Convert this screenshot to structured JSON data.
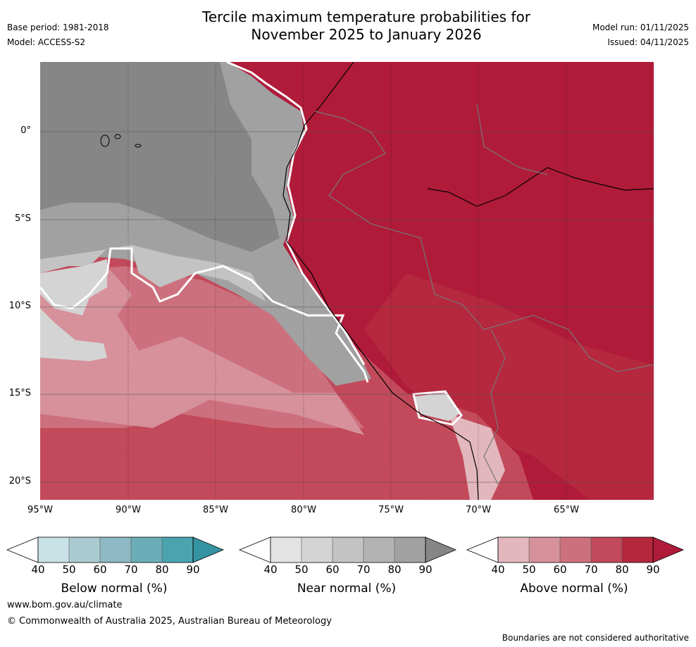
{
  "header": {
    "title_line1": "Tercile maximum temperature probabilities for",
    "title_line2": "November 2025 to January 2026",
    "base_period": "Base period: 1981-2018",
    "model": "Model: ACCESS-S2",
    "model_run": "Model run: 01/11/2025",
    "issued": "Issued: 04/11/2025"
  },
  "map": {
    "lat_labels": [
      "0°",
      "5°S",
      "10°S",
      "15°S",
      "20°S"
    ],
    "lon_labels": [
      "95°W",
      "90°W",
      "85°W",
      "80°W",
      "75°W",
      "70°W",
      "65°W"
    ],
    "colors": {
      "near_normal": [
        "#e3e3e3",
        "#d4d4d4",
        "#c3c3c3",
        "#b3b3b3",
        "#a1a1a1",
        "#868686"
      ],
      "above_normal": [
        "#e2b7bd",
        "#d6919b",
        "#cd707d",
        "#c24a5b",
        "#b5283e",
        "#b01b3a"
      ],
      "below_normal": [
        "#c9e2e6",
        "#a9cad0",
        "#8cb9c3",
        "#6caeb8",
        "#4ba3b0",
        "#3594a3"
      ]
    }
  },
  "legend": {
    "below": {
      "title": "Below normal (%)",
      "ticks": [
        "40",
        "50",
        "60",
        "70",
        "80",
        "90"
      ]
    },
    "near": {
      "title": "Near normal (%)",
      "ticks": [
        "40",
        "50",
        "60",
        "70",
        "80",
        "90"
      ]
    },
    "above": {
      "title": "Above normal (%)",
      "ticks": [
        "40",
        "50",
        "60",
        "70",
        "80",
        "90"
      ]
    }
  },
  "footer": {
    "url": "www.bom.gov.au/climate",
    "copyright": "© Commonwealth of Australia 2025, Australian Bureau of Meteorology",
    "disclaimer": "Boundaries are not considered authoritative"
  }
}
